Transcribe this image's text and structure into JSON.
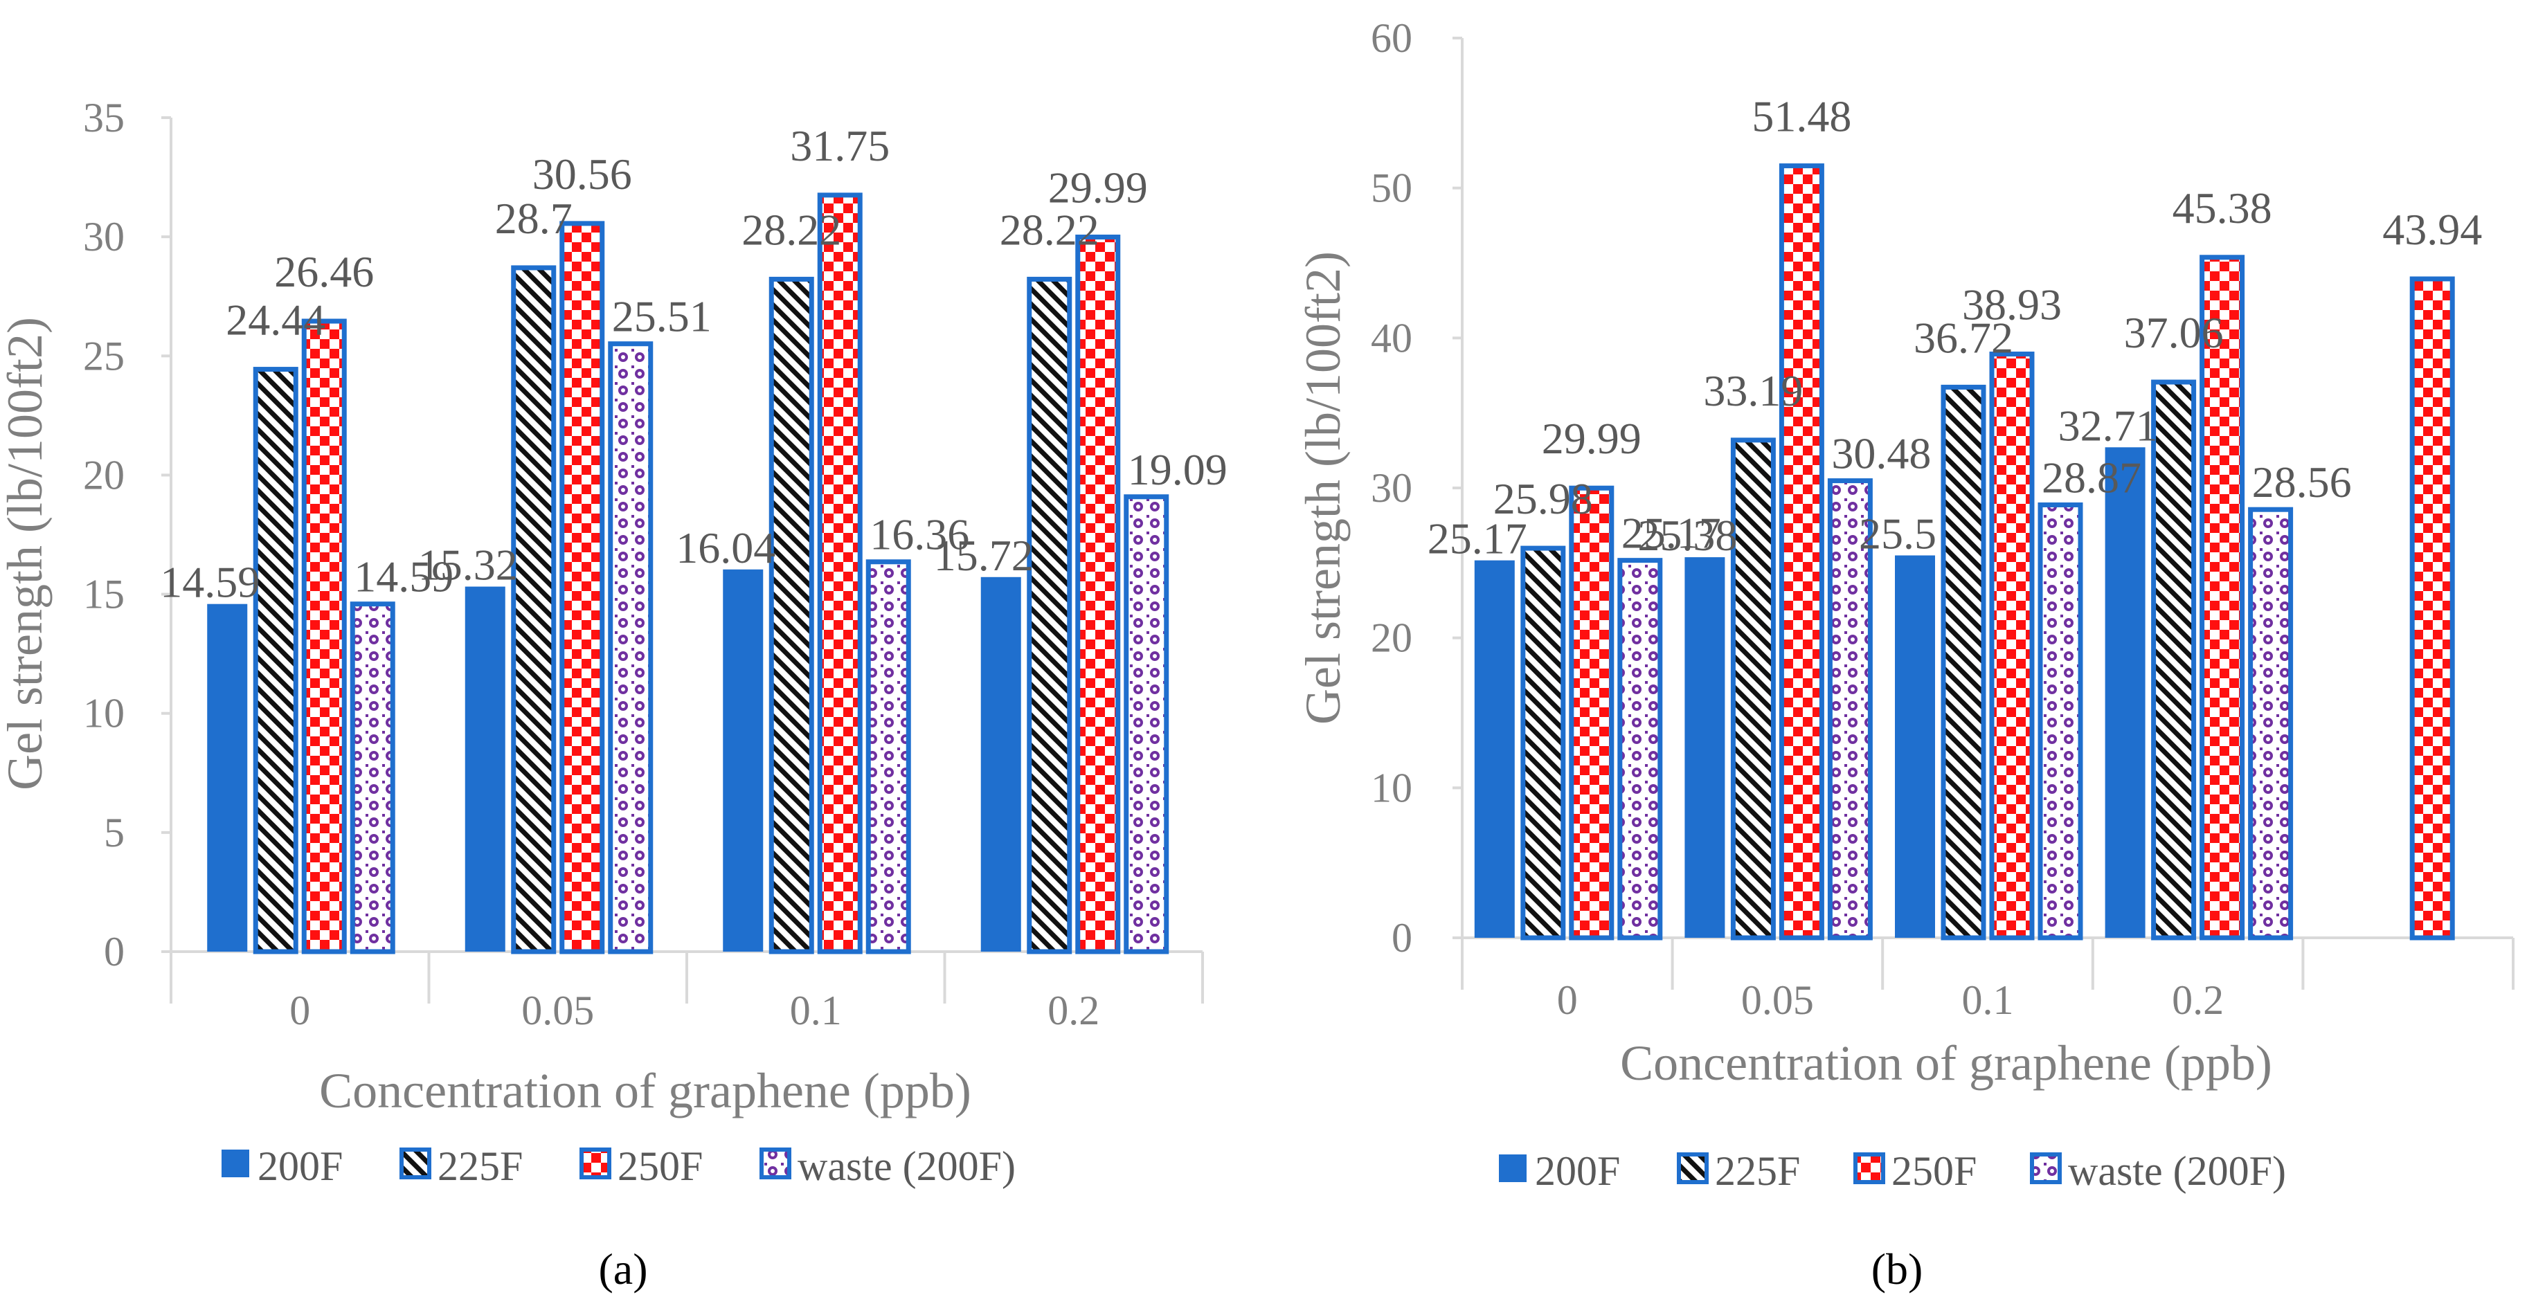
{
  "colors": {
    "s200": "#1f6fce",
    "s225": "#111111",
    "s250": "#ff1010",
    "waste": "#7030a0",
    "outline": "#1f6fce",
    "axis": "#d9d9d9",
    "text": "#7f7f7f",
    "label": "#595959"
  },
  "chart_data": [
    {
      "type": "bar",
      "panel_label": "(a)",
      "ylabel": "Gel strength (lb/100ft2)",
      "xlabel": "Concentration of graphene (ppb)",
      "categories": [
        "0",
        "0.05",
        "0.1",
        "0.2"
      ],
      "ylim": [
        0,
        35
      ],
      "yticks": [
        0,
        5,
        10,
        15,
        20,
        25,
        30,
        35
      ],
      "legend_position": "bottom",
      "series": [
        {
          "name": "200F",
          "values": [
            14.59,
            15.32,
            16.04,
            15.72
          ],
          "labels": [
            "14.59",
            "15.32",
            "16.04",
            "15.72"
          ]
        },
        {
          "name": "225F",
          "values": [
            24.44,
            28.7,
            28.22,
            28.22
          ],
          "labels": [
            "24.44",
            "28.7",
            "28.22",
            "28.22"
          ]
        },
        {
          "name": "250F",
          "values": [
            26.46,
            30.56,
            31.75,
            29.99
          ],
          "labels": [
            "26.46",
            "30.56",
            "31.75",
            "29.99"
          ]
        },
        {
          "name": "waste (200F)",
          "values": [
            14.59,
            25.51,
            16.36,
            19.09
          ],
          "labels": [
            "14.59",
            "25.51",
            "16.36",
            "19.09"
          ]
        }
      ]
    },
    {
      "type": "bar",
      "panel_label": "(b)",
      "ylabel": "Gel strength (lb/100ft2)",
      "xlabel": "Concentration of graphene (ppb)",
      "categories": [
        "0",
        "0.05",
        "0.1",
        "0.2",
        ""
      ],
      "ylim": [
        0,
        60
      ],
      "yticks": [
        0,
        10,
        20,
        30,
        40,
        50,
        60
      ],
      "legend_position": "bottom",
      "series": [
        {
          "name": "200F",
          "values": [
            25.17,
            25.38,
            25.5,
            32.71,
            null
          ],
          "labels": [
            "25.17",
            "25.38",
            "25.5",
            "32.71",
            ""
          ]
        },
        {
          "name": "225F",
          "values": [
            25.98,
            33.19,
            36.72,
            37.06,
            null
          ],
          "labels": [
            "25.98",
            "33.19",
            "36.72",
            "37.06",
            ""
          ]
        },
        {
          "name": "250F",
          "values": [
            29.99,
            51.48,
            38.93,
            45.38,
            43.94
          ],
          "labels": [
            "29.99",
            "51.48",
            "38.93",
            "45.38",
            "43.94"
          ]
        },
        {
          "name": "waste (200F)",
          "values": [
            25.17,
            30.48,
            28.87,
            28.56,
            null
          ],
          "labels": [
            "25.17",
            "30.48",
            "28.87",
            "28.56",
            ""
          ]
        }
      ]
    }
  ]
}
